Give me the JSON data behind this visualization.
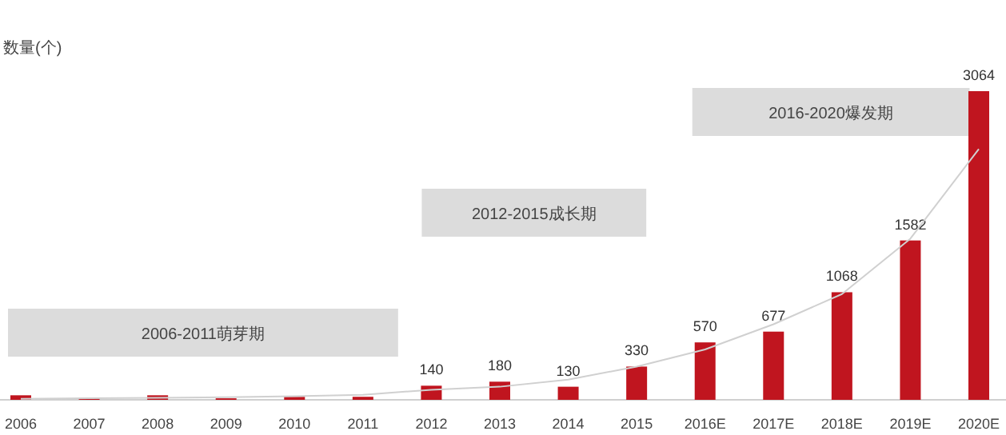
{
  "chart_data": {
    "type": "bar",
    "title": "数量(个)",
    "categories": [
      "2006",
      "2007",
      "2008",
      "2009",
      "2010",
      "2011",
      "2012",
      "2013",
      "2014",
      "2015",
      "2016E",
      "2017E",
      "2018E",
      "2019E",
      "2020E"
    ],
    "series": [
      {
        "color": "#c0151f",
        "values": [
          45,
          15,
          45,
          15,
          30,
          30,
          140,
          180,
          130,
          330,
          570,
          677,
          1068,
          1582,
          3064
        ],
        "value_labels": [
          null,
          null,
          null,
          null,
          null,
          null,
          "140",
          "180",
          "130",
          "330",
          "570",
          "677",
          "1068",
          "1582",
          "3064"
        ]
      },
      {
        "type": "line",
        "color": "#d0d0d0",
        "values": [
          10,
          15,
          20,
          25,
          35,
          50,
          100,
          130,
          200,
          330,
          500,
          750,
          1050,
          1600,
          2490
        ]
      }
    ],
    "annotations": [
      "2006-2011萌芽期",
      "2012-2015成长期",
      "2016-2020爆发期"
    ]
  }
}
